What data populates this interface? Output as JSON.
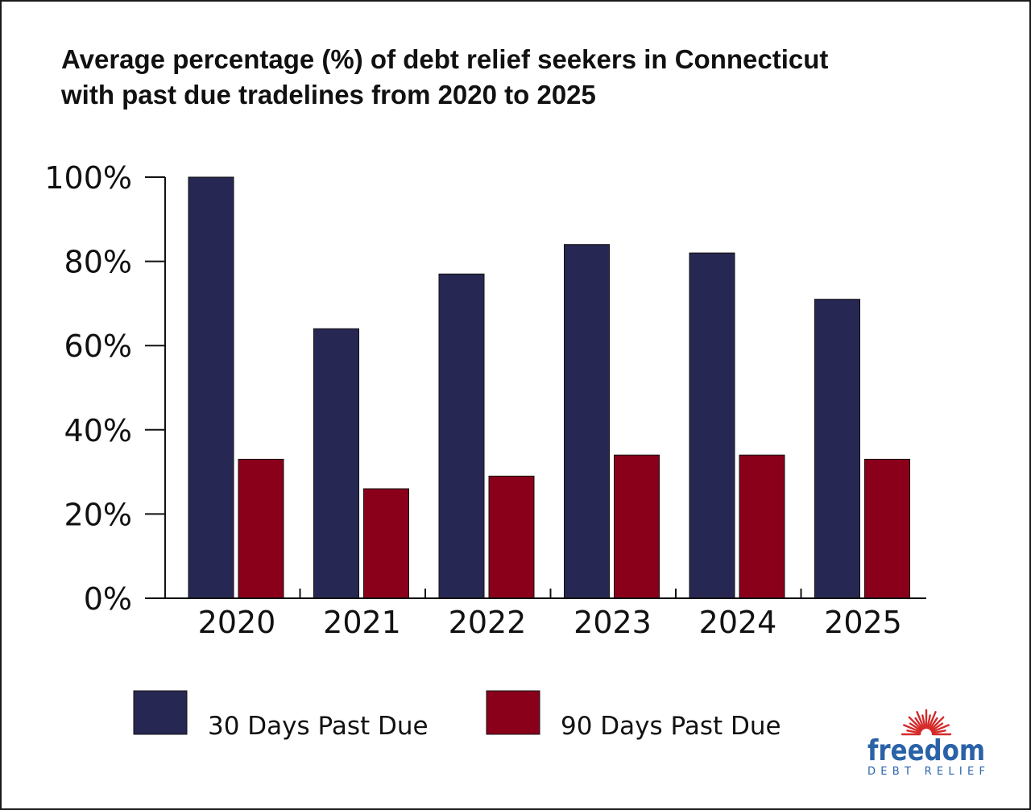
{
  "title": {
    "line1": "Average percentage (%) of debt relief seekers in Connecticut",
    "line2": "with past due tradelines from 2020 to 2025"
  },
  "colors": {
    "series_30": "#272753",
    "series_90": "#8a001b",
    "logo_blue": "#2a62a8",
    "logo_red": "#d42a2a"
  },
  "chart_data": {
    "type": "bar",
    "categories": [
      "2020",
      "2021",
      "2022",
      "2023",
      "2024",
      "2025"
    ],
    "series": [
      {
        "name": "30 Days Past Due",
        "values": [
          100,
          64,
          77,
          84,
          82,
          71
        ]
      },
      {
        "name": "90 Days Past Due",
        "values": [
          33,
          26,
          29,
          34,
          34,
          33
        ]
      }
    ],
    "ylim": [
      0,
      100
    ],
    "yticks": [
      "0%",
      "20%",
      "40%",
      "60%",
      "80%",
      "100%"
    ],
    "grid": false,
    "legend": "bottom"
  },
  "logo": {
    "wordmark": "freedom",
    "tagline": "DEBT RELIEF"
  }
}
